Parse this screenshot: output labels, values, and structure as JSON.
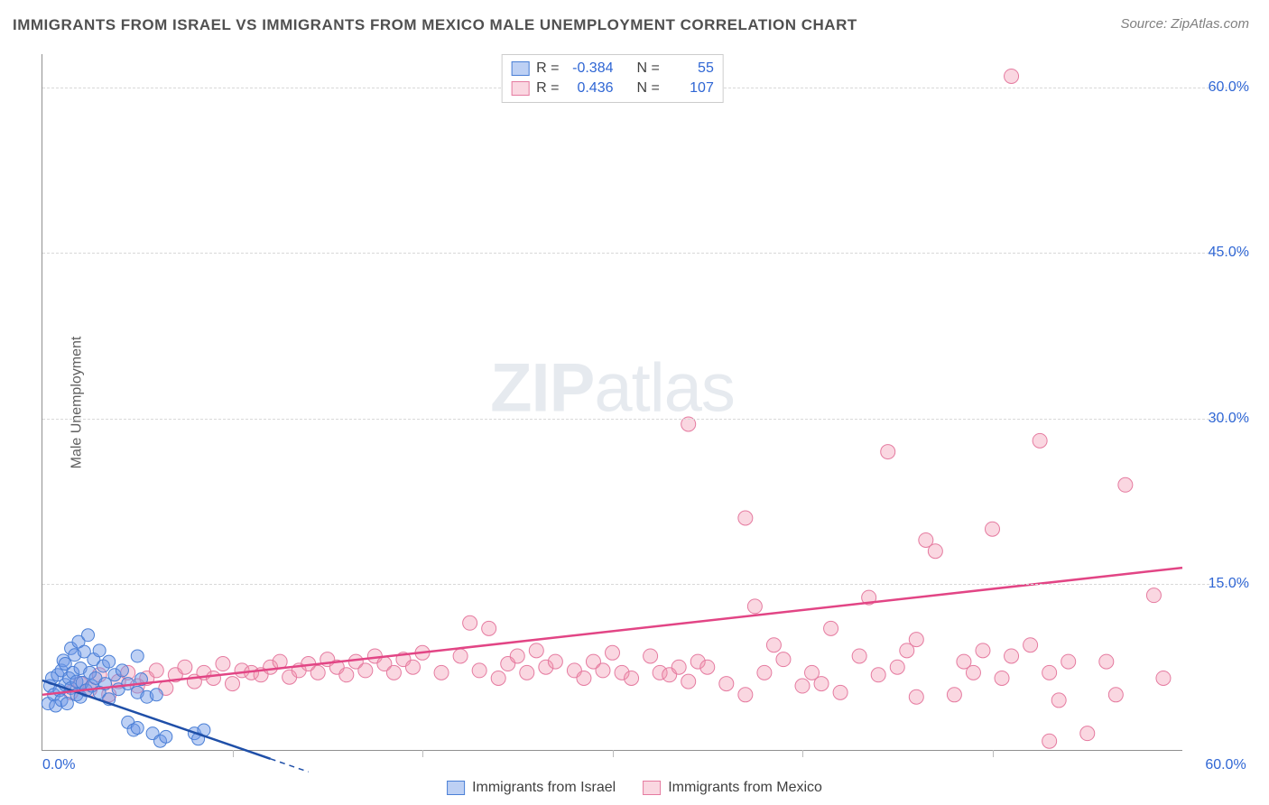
{
  "title": "IMMIGRANTS FROM ISRAEL VS IMMIGRANTS FROM MEXICO MALE UNEMPLOYMENT CORRELATION CHART",
  "source": "Source: ZipAtlas.com",
  "ylabel": "Male Unemployment",
  "watermark": {
    "bold": "ZIP",
    "light": "atlas"
  },
  "background_color": "#ffffff",
  "grid_color": "#d8d8d8",
  "axis_color": "#909090",
  "tick_label_color": "#2f66d4",
  "xlim": [
    0,
    60
  ],
  "ylim": [
    0,
    63
  ],
  "yticks": [
    15,
    30,
    45,
    60
  ],
  "xticks": [
    0,
    10,
    20,
    30,
    40,
    50,
    60
  ],
  "xtick_labels_shown": {
    "0": "0.0%",
    "60": "60.0%"
  },
  "ytick_labels": {
    "15": "15.0%",
    "30": "30.0%",
    "45": "45.0%",
    "60": "60.0%"
  },
  "series": [
    {
      "name": "Immigrants from Israel",
      "legend_label": "Immigrants from Israel",
      "fill": "rgba(108,150,230,0.45)",
      "stroke": "#4a7fd6",
      "marker_radius": 7,
      "R": "-0.384",
      "N": "55",
      "trend": {
        "x1": 0,
        "y1": 6.3,
        "x2": 12,
        "y2": -0.8,
        "color": "#1f4fa8",
        "width": 2.5,
        "dash_extend_to_x": 14
      },
      "points": [
        [
          0.3,
          4.2
        ],
        [
          0.4,
          5.8
        ],
        [
          0.5,
          6.5
        ],
        [
          0.6,
          5.0
        ],
        [
          0.7,
          4.0
        ],
        [
          0.8,
          6.8
        ],
        [
          0.9,
          5.4
        ],
        [
          1.0,
          7.2
        ],
        [
          1.0,
          4.5
        ],
        [
          1.1,
          8.1
        ],
        [
          1.2,
          5.9
        ],
        [
          1.2,
          7.8
        ],
        [
          1.3,
          4.2
        ],
        [
          1.4,
          6.5
        ],
        [
          1.5,
          9.2
        ],
        [
          1.5,
          5.6
        ],
        [
          1.6,
          7.0
        ],
        [
          1.7,
          8.6
        ],
        [
          1.8,
          6.2
        ],
        [
          1.8,
          5.0
        ],
        [
          1.9,
          9.8
        ],
        [
          2.0,
          7.4
        ],
        [
          2.0,
          4.8
        ],
        [
          2.1,
          6.1
        ],
        [
          2.2,
          8.9
        ],
        [
          2.3,
          5.4
        ],
        [
          2.4,
          10.4
        ],
        [
          2.5,
          7.0
        ],
        [
          2.6,
          5.8
        ],
        [
          2.7,
          8.2
        ],
        [
          2.8,
          6.5
        ],
        [
          3.0,
          9.0
        ],
        [
          3.0,
          5.2
        ],
        [
          3.2,
          7.6
        ],
        [
          3.3,
          6.0
        ],
        [
          3.5,
          8.0
        ],
        [
          3.5,
          4.6
        ],
        [
          3.8,
          6.8
        ],
        [
          4.0,
          5.5
        ],
        [
          4.2,
          7.2
        ],
        [
          4.5,
          2.5
        ],
        [
          4.5,
          6.0
        ],
        [
          4.8,
          1.8
        ],
        [
          5.0,
          5.2
        ],
        [
          5.0,
          2.0
        ],
        [
          5.2,
          6.4
        ],
        [
          5.5,
          4.8
        ],
        [
          5.8,
          1.5
        ],
        [
          6.0,
          5.0
        ],
        [
          6.2,
          0.8
        ],
        [
          6.5,
          1.2
        ],
        [
          8.0,
          1.5
        ],
        [
          8.2,
          1.0
        ],
        [
          8.5,
          1.8
        ],
        [
          5.0,
          8.5
        ]
      ]
    },
    {
      "name": "Immigrants from Mexico",
      "legend_label": "Immigrants from Mexico",
      "fill": "rgba(240,140,170,0.35)",
      "stroke": "#e57ba0",
      "marker_radius": 8,
      "R": "0.436",
      "N": "107",
      "trend": {
        "x1": 0,
        "y1": 5.0,
        "x2": 60,
        "y2": 16.5,
        "color": "#e24585",
        "width": 2.5
      },
      "points": [
        [
          1.5,
          5.2
        ],
        [
          2.0,
          6.0
        ],
        [
          2.5,
          5.5
        ],
        [
          3.0,
          6.8
        ],
        [
          3.5,
          5.0
        ],
        [
          4.0,
          6.2
        ],
        [
          4.5,
          7.0
        ],
        [
          5.0,
          5.8
        ],
        [
          5.5,
          6.5
        ],
        [
          6.0,
          7.2
        ],
        [
          6.5,
          5.6
        ],
        [
          7.0,
          6.8
        ],
        [
          7.5,
          7.5
        ],
        [
          8.0,
          6.2
        ],
        [
          8.5,
          7.0
        ],
        [
          9.0,
          6.5
        ],
        [
          9.5,
          7.8
        ],
        [
          10.0,
          6.0
        ],
        [
          10.5,
          7.2
        ],
        [
          11.0,
          7.0
        ],
        [
          11.5,
          6.8
        ],
        [
          12.0,
          7.5
        ],
        [
          12.5,
          8.0
        ],
        [
          13.0,
          6.6
        ],
        [
          13.5,
          7.2
        ],
        [
          14.0,
          7.8
        ],
        [
          14.5,
          7.0
        ],
        [
          15.0,
          8.2
        ],
        [
          15.5,
          7.5
        ],
        [
          16.0,
          6.8
        ],
        [
          16.5,
          8.0
        ],
        [
          17.0,
          7.2
        ],
        [
          17.5,
          8.5
        ],
        [
          18.0,
          7.8
        ],
        [
          18.5,
          7.0
        ],
        [
          19.0,
          8.2
        ],
        [
          19.5,
          7.5
        ],
        [
          20.0,
          8.8
        ],
        [
          21.0,
          7.0
        ],
        [
          22.0,
          8.5
        ],
        [
          22.5,
          11.5
        ],
        [
          23.0,
          7.2
        ],
        [
          23.5,
          11.0
        ],
        [
          24.0,
          6.5
        ],
        [
          24.5,
          7.8
        ],
        [
          25.0,
          8.5
        ],
        [
          25.5,
          7.0
        ],
        [
          26.0,
          9.0
        ],
        [
          26.5,
          7.5
        ],
        [
          27.0,
          8.0
        ],
        [
          28.0,
          7.2
        ],
        [
          28.5,
          6.5
        ],
        [
          29.0,
          8.0
        ],
        [
          29.5,
          7.2
        ],
        [
          30.0,
          8.8
        ],
        [
          30.5,
          7.0
        ],
        [
          31.0,
          6.5
        ],
        [
          32.0,
          8.5
        ],
        [
          32.5,
          7.0
        ],
        [
          33.0,
          6.8
        ],
        [
          33.5,
          7.5
        ],
        [
          34.0,
          6.2
        ],
        [
          34.5,
          8.0
        ],
        [
          35.0,
          7.5
        ],
        [
          34.0,
          29.5
        ],
        [
          36.0,
          6.0
        ],
        [
          37.0,
          5.0
        ],
        [
          37.5,
          13.0
        ],
        [
          37.0,
          21.0
        ],
        [
          38.0,
          7.0
        ],
        [
          38.5,
          9.5
        ],
        [
          39.0,
          8.2
        ],
        [
          40.0,
          5.8
        ],
        [
          40.5,
          7.0
        ],
        [
          41.0,
          6.0
        ],
        [
          41.5,
          11.0
        ],
        [
          42.0,
          5.2
        ],
        [
          43.0,
          8.5
        ],
        [
          43.5,
          13.8
        ],
        [
          44.0,
          6.8
        ],
        [
          44.5,
          27.0
        ],
        [
          45.0,
          7.5
        ],
        [
          45.5,
          9.0
        ],
        [
          46.0,
          10.0
        ],
        [
          46.5,
          19.0
        ],
        [
          47.0,
          18.0
        ],
        [
          48.0,
          5.0
        ],
        [
          48.5,
          8.0
        ],
        [
          49.0,
          7.0
        ],
        [
          49.5,
          9.0
        ],
        [
          50.0,
          20.0
        ],
        [
          50.5,
          6.5
        ],
        [
          51.0,
          8.5
        ],
        [
          52.0,
          9.5
        ],
        [
          52.5,
          28.0
        ],
        [
          53.0,
          7.0
        ],
        [
          53.5,
          4.5
        ],
        [
          54.0,
          8.0
        ],
        [
          51.0,
          61.0
        ],
        [
          55.0,
          1.5
        ],
        [
          56.0,
          8.0
        ],
        [
          56.5,
          5.0
        ],
        [
          57.0,
          24.0
        ],
        [
          58.5,
          14.0
        ],
        [
          59.0,
          6.5
        ],
        [
          53.0,
          0.8
        ],
        [
          46.0,
          4.8
        ]
      ]
    }
  ],
  "legend_top": {
    "border": "#cccccc",
    "rows": [
      {
        "swatch_fill": "rgba(108,150,230,0.45)",
        "swatch_stroke": "#4a7fd6",
        "R_label": "R =",
        "R_val": "-0.384",
        "N_label": "N =",
        "N_val": "55"
      },
      {
        "swatch_fill": "rgba(240,140,170,0.35)",
        "swatch_stroke": "#e57ba0",
        "R_label": "R =",
        "R_val": "0.436",
        "N_label": "N =",
        "N_val": "107"
      }
    ]
  }
}
